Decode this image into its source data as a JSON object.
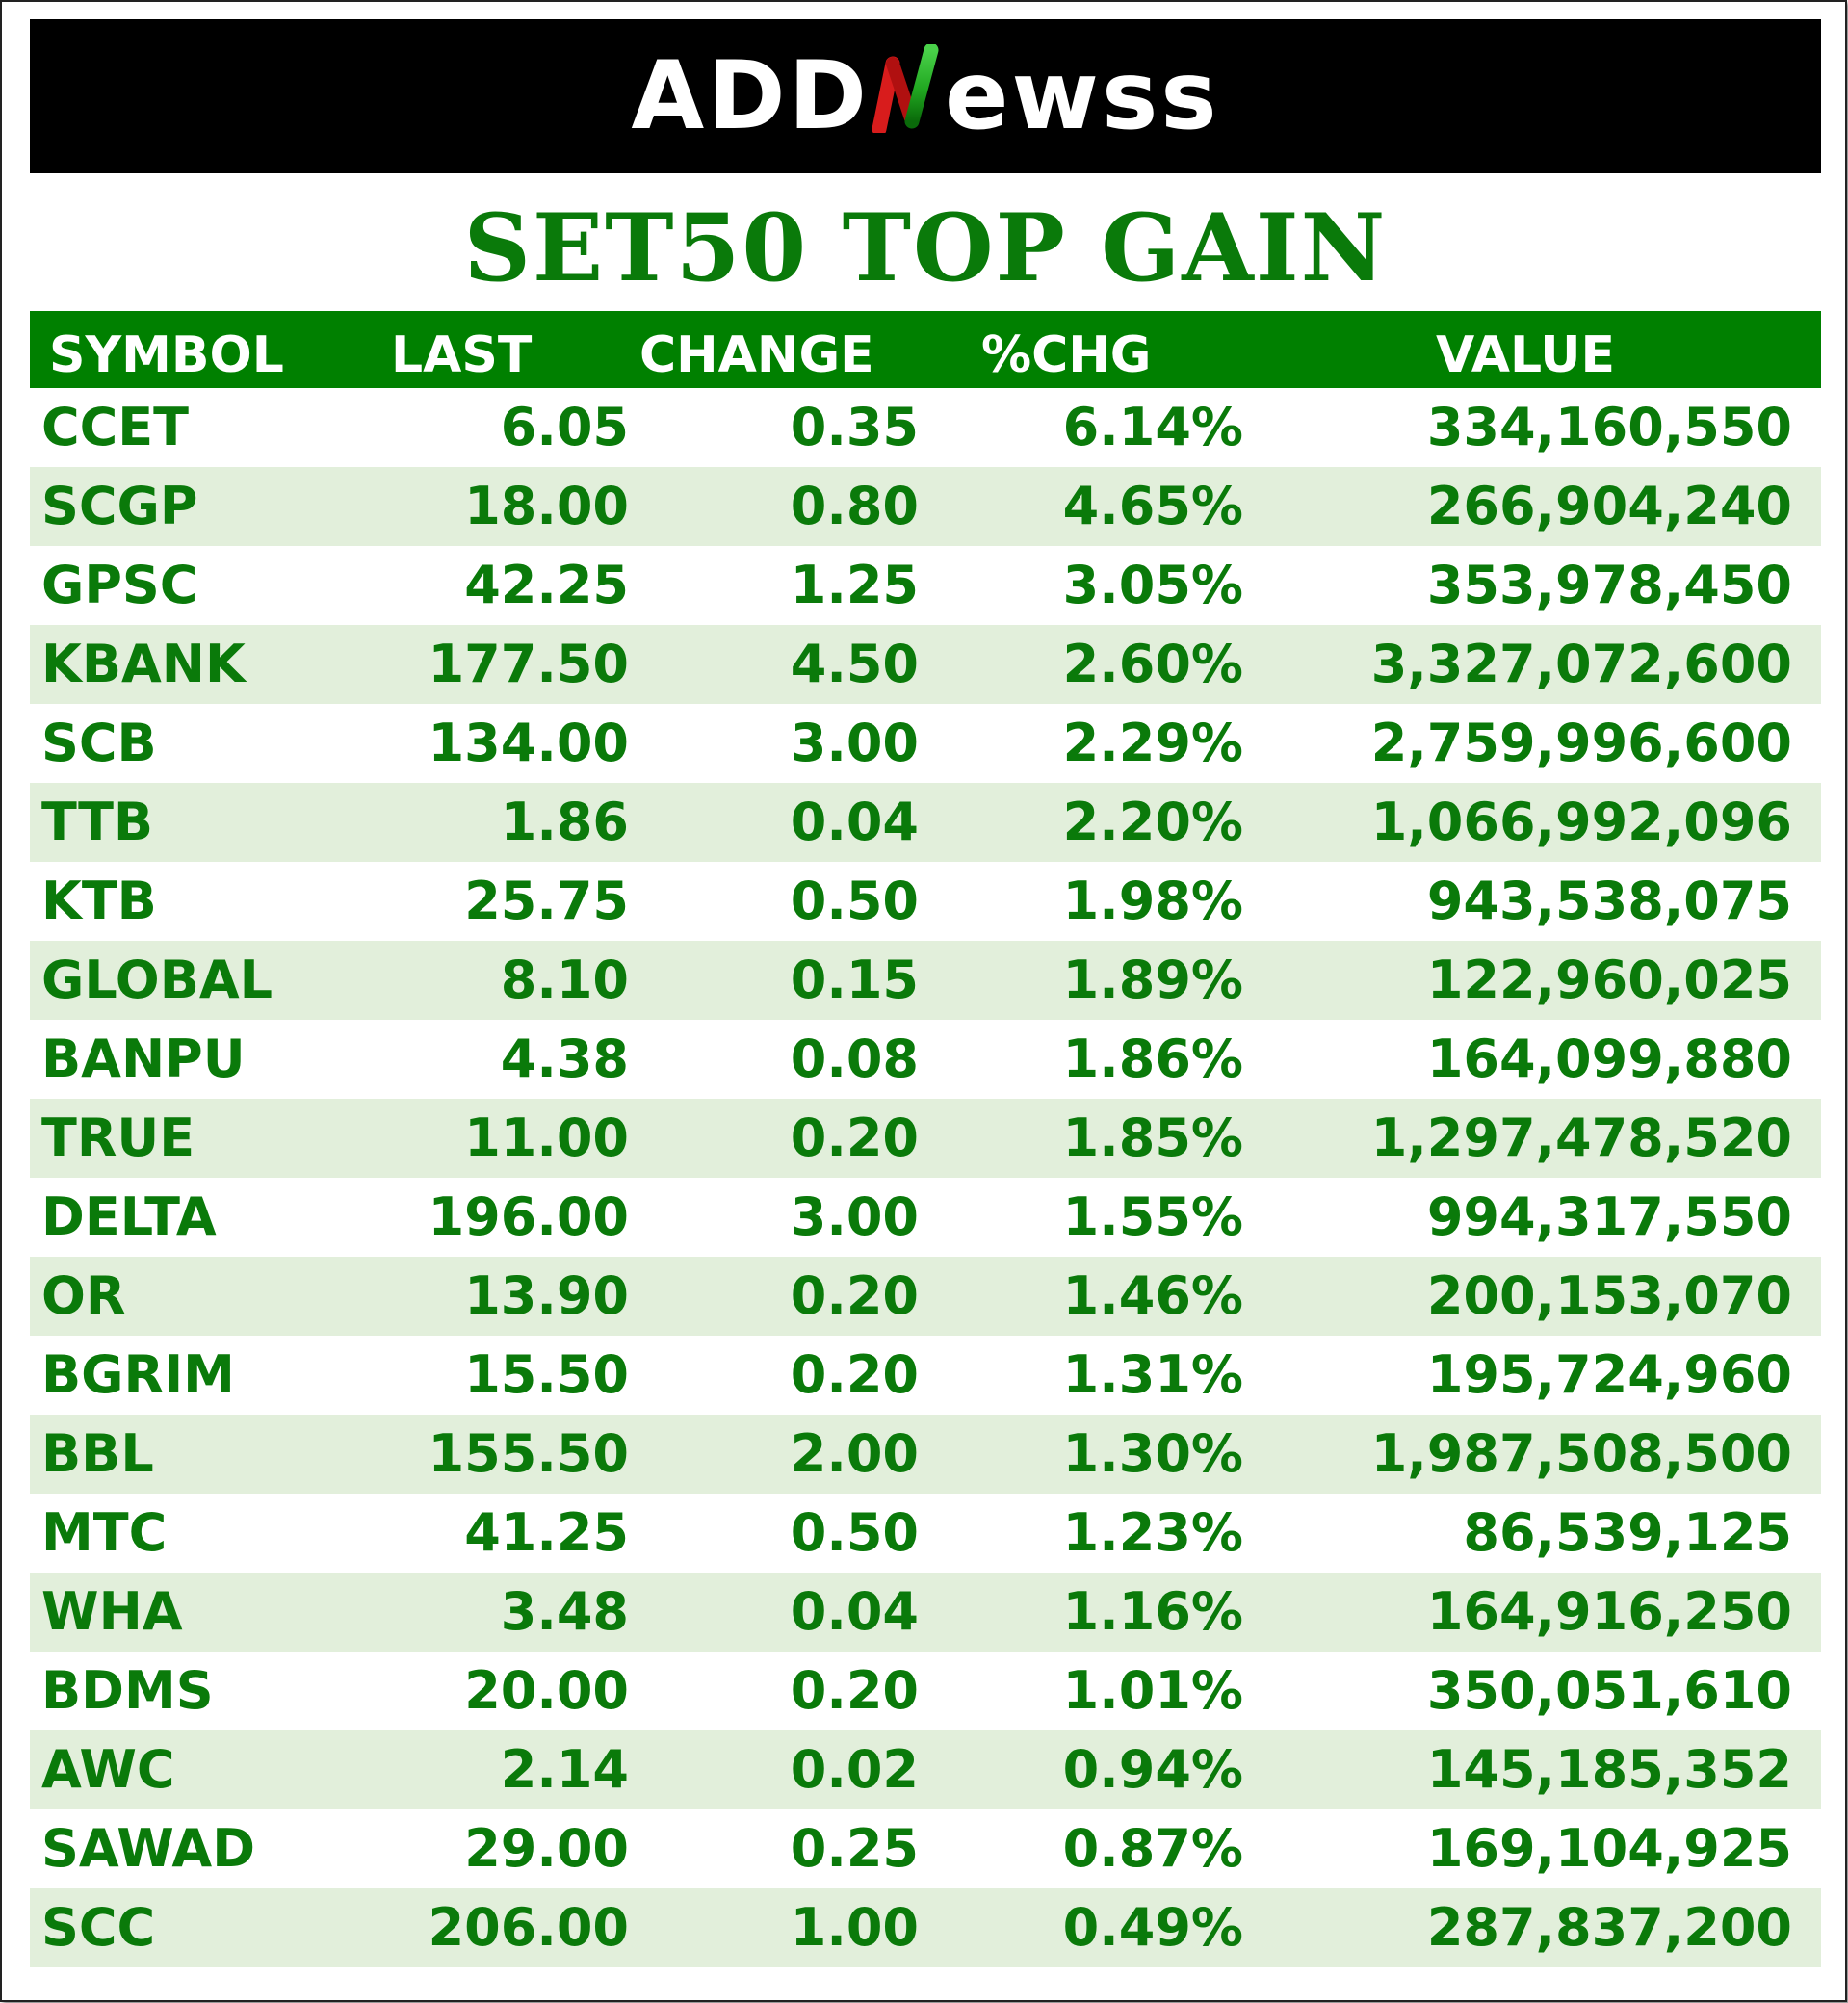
{
  "brand": {
    "name_left": "ADD",
    "name_right": "ewss",
    "mark_colors": [
      "#4ad14a",
      "#d81c1c"
    ]
  },
  "title": "SET50 TOP GAIN",
  "table": {
    "headers": [
      "SYMBOL",
      "LAST",
      "CHANGE",
      "%CHG",
      "VALUE"
    ],
    "header_bg": "#008000",
    "text_color": "#0a7a0a",
    "alt_row_bg": "#e2efdb",
    "rows": [
      [
        "CCET",
        "6.05",
        "0.35",
        "6.14%",
        "334,160,550"
      ],
      [
        "SCGP",
        "18.00",
        "0.80",
        "4.65%",
        "266,904,240"
      ],
      [
        "GPSC",
        "42.25",
        "1.25",
        "3.05%",
        "353,978,450"
      ],
      [
        "KBANK",
        "177.50",
        "4.50",
        "2.60%",
        "3,327,072,600"
      ],
      [
        "SCB",
        "134.00",
        "3.00",
        "2.29%",
        "2,759,996,600"
      ],
      [
        "TTB",
        "1.86",
        "0.04",
        "2.20%",
        "1,066,992,096"
      ],
      [
        "KTB",
        "25.75",
        "0.50",
        "1.98%",
        "943,538,075"
      ],
      [
        "GLOBAL",
        "8.10",
        "0.15",
        "1.89%",
        "122,960,025"
      ],
      [
        "BANPU",
        "4.38",
        "0.08",
        "1.86%",
        "164,099,880"
      ],
      [
        "TRUE",
        "11.00",
        "0.20",
        "1.85%",
        "1,297,478,520"
      ],
      [
        "DELTA",
        "196.00",
        "3.00",
        "1.55%",
        "994,317,550"
      ],
      [
        "OR",
        "13.90",
        "0.20",
        "1.46%",
        "200,153,070"
      ],
      [
        "BGRIM",
        "15.50",
        "0.20",
        "1.31%",
        "195,724,960"
      ],
      [
        "BBL",
        "155.50",
        "2.00",
        "1.30%",
        "1,987,508,500"
      ],
      [
        "MTC",
        "41.25",
        "0.50",
        "1.23%",
        "86,539,125"
      ],
      [
        "WHA",
        "3.48",
        "0.04",
        "1.16%",
        "164,916,250"
      ],
      [
        "BDMS",
        "20.00",
        "0.20",
        "1.01%",
        "350,051,610"
      ],
      [
        "AWC",
        "2.14",
        "0.02",
        "0.94%",
        "145,185,352"
      ],
      [
        "SAWAD",
        "29.00",
        "0.25",
        "0.87%",
        "169,104,925"
      ],
      [
        "SCC",
        "206.00",
        "1.00",
        "0.49%",
        "287,837,200"
      ]
    ]
  }
}
